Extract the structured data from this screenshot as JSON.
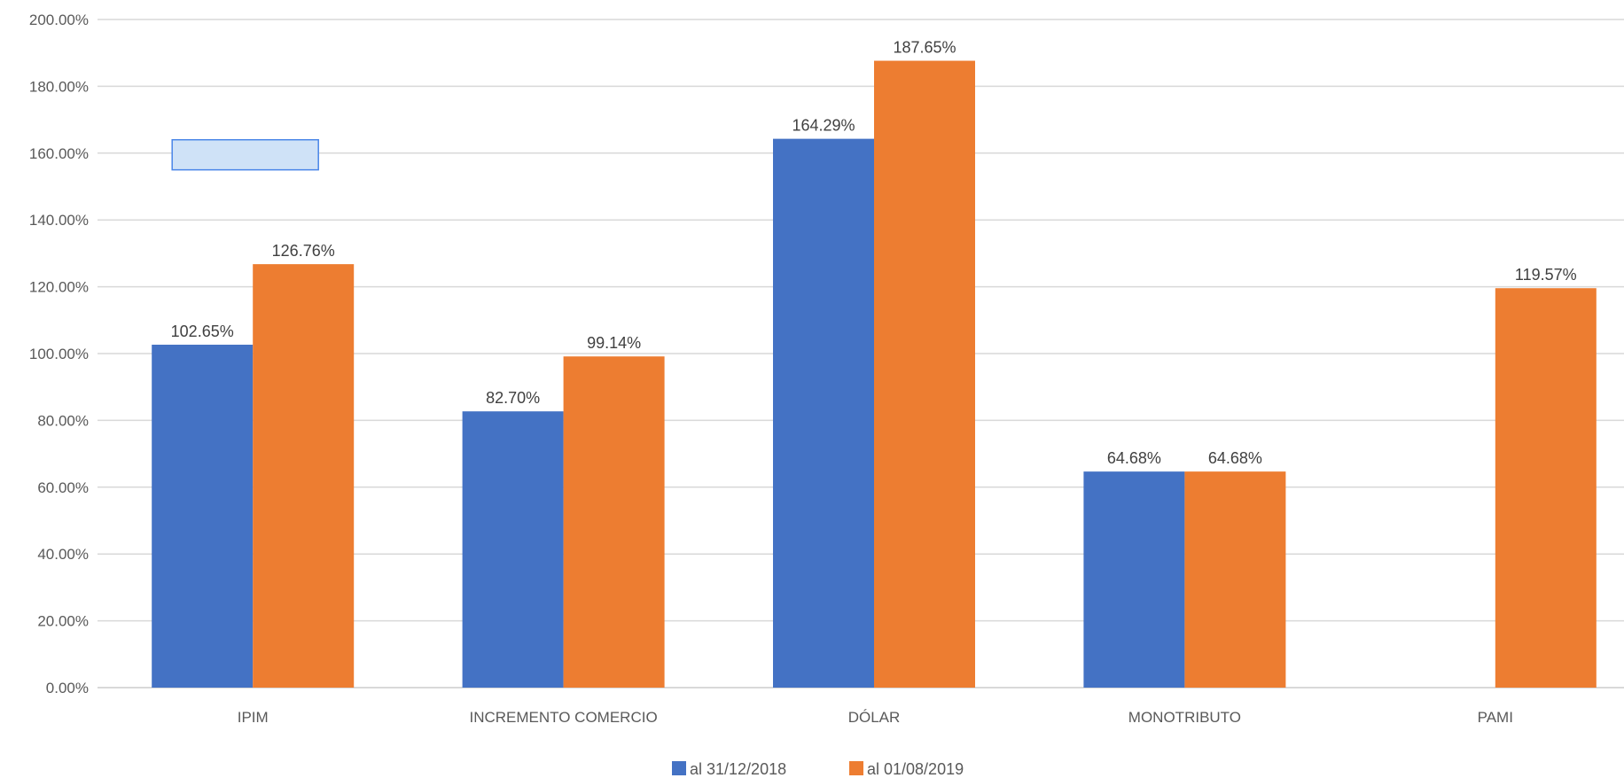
{
  "chart_data": {
    "type": "bar",
    "title": "",
    "xlabel": "",
    "ylabel": "",
    "ylim": [
      0,
      200
    ],
    "yticks": [
      0,
      20,
      40,
      60,
      80,
      100,
      120,
      140,
      160,
      180,
      200
    ],
    "ytick_labels": [
      "0.00%",
      "20.00%",
      "40.00%",
      "60.00%",
      "80.00%",
      "100.00%",
      "120.00%",
      "140.00%",
      "160.00%",
      "180.00%",
      "200.00%"
    ],
    "categories": [
      "IPIM",
      "INCREMENTO COMERCIO",
      "DÓLAR",
      "MONOTRIBUTO",
      "PAMI"
    ],
    "series": [
      {
        "name": "al 31/12/2018",
        "color": "#4472C4",
        "values": [
          102.65,
          82.7,
          164.29,
          64.68,
          null
        ],
        "labels": [
          "102.65%",
          "82.70%",
          "164.29%",
          "64.68%",
          ""
        ]
      },
      {
        "name": "al 01/08/2019",
        "color": "#ED7D31",
        "values": [
          126.76,
          99.14,
          187.65,
          64.68,
          119.57
        ],
        "labels": [
          "126.76%",
          "99.14%",
          "187.65%",
          "64.68%",
          "119.57%"
        ]
      }
    ],
    "grid": true,
    "legend_position": "bottom-center",
    "overlay_box": {
      "category": "IPIM",
      "y_range": [
        155,
        164
      ],
      "fill": "#cfe2f7",
      "stroke": "#4a86e8"
    }
  }
}
